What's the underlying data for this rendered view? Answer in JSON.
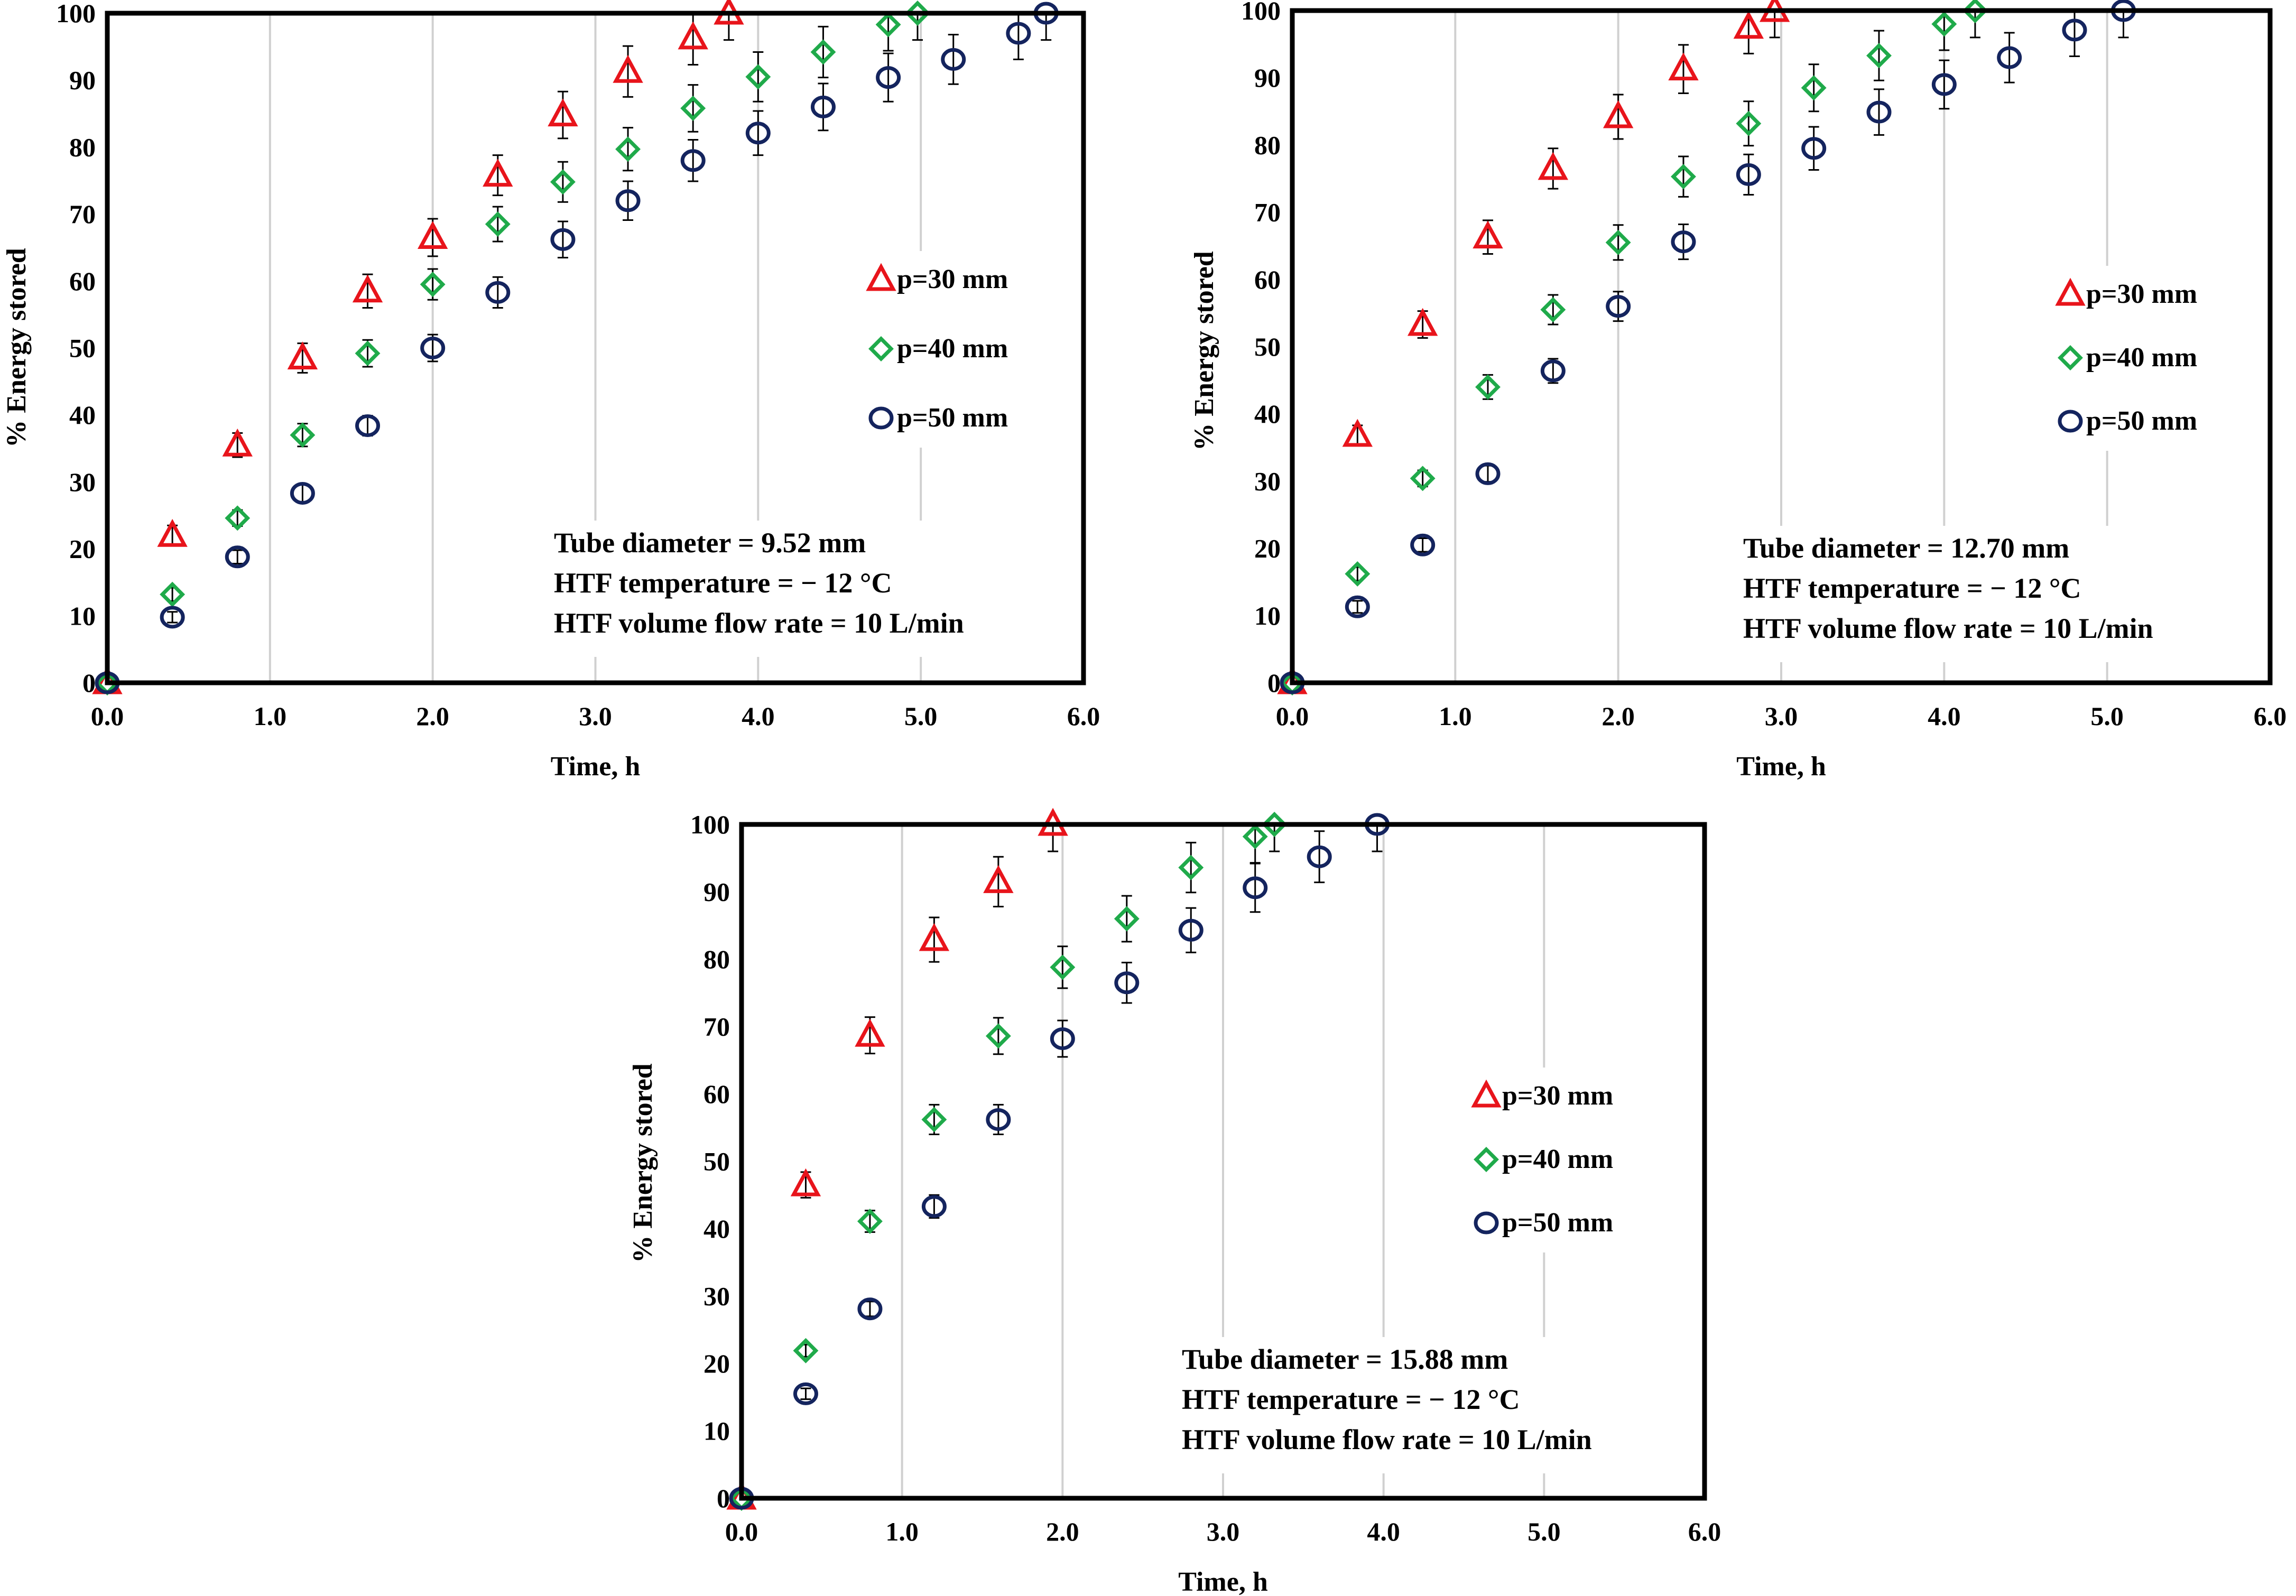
{
  "colors": {
    "p30": "#e8141b",
    "p40": "#1faa4a",
    "p50": "#14245e",
    "grid": "#d0d0d0",
    "frame": "#000000"
  },
  "chart_data": [
    {
      "type": "scatter",
      "title": "",
      "xlabel": "Time, h",
      "ylabel": "% Energy stored",
      "xlim": [
        0,
        6
      ],
      "ylim": [
        0,
        100
      ],
      "x_ticks": [
        "0.0",
        "1.0",
        "2.0",
        "3.0",
        "4.0",
        "5.0",
        "6.0"
      ],
      "y_ticks": [
        "0",
        "10",
        "20",
        "30",
        "40",
        "50",
        "60",
        "70",
        "80",
        "90",
        "100"
      ],
      "legend": [
        "p=30 mm",
        "p=40 mm",
        "p=50 mm"
      ],
      "annotation": [
        "Tube diameter = 9.52 mm",
        "HTF temperature = − 12 °C",
        "HTF volume flow rate = 10 L/min"
      ],
      "series": [
        {
          "name": "p=30 mm",
          "marker": "triangle",
          "x": [
            0,
            0.4,
            0.8,
            1.2,
            1.6,
            2.0,
            2.4,
            2.8,
            3.2,
            3.6,
            3.82
          ],
          "y": [
            0,
            22,
            35.5,
            48.5,
            58.5,
            66.5,
            75.8,
            84.8,
            91.3,
            96.3,
            100
          ],
          "err": [
            0,
            1.5,
            1.8,
            2.2,
            2.5,
            2.8,
            3.0,
            3.5,
            3.8,
            4.0,
            4.0
          ]
        },
        {
          "name": "p=40 mm",
          "marker": "diamond",
          "x": [
            0,
            0.4,
            0.8,
            1.2,
            1.6,
            2.0,
            2.4,
            2.8,
            3.2,
            3.6,
            4.0,
            4.4,
            4.8,
            4.98
          ],
          "y": [
            0,
            13.2,
            24.6,
            37,
            49.2,
            59.5,
            68.5,
            74.8,
            79.7,
            85.8,
            90.5,
            94.2,
            98.3,
            100
          ],
          "err": [
            0,
            1.0,
            1.2,
            1.7,
            2.0,
            2.3,
            2.6,
            3.0,
            3.2,
            3.5,
            3.7,
            3.8,
            3.9,
            4.0
          ]
        },
        {
          "name": "p=50 mm",
          "marker": "circle",
          "x": [
            0,
            0.4,
            0.8,
            1.2,
            1.6,
            2.0,
            2.4,
            2.8,
            3.2,
            3.6,
            4.0,
            4.4,
            4.8,
            5.2,
            5.6,
            5.77
          ],
          "y": [
            0,
            9.8,
            18.8,
            28.3,
            38.4,
            50,
            58.3,
            66.2,
            72,
            78,
            82.1,
            86,
            90.4,
            93.1,
            97,
            100
          ],
          "err": [
            0,
            0.8,
            1.0,
            1.3,
            1.5,
            2.0,
            2.3,
            2.7,
            2.9,
            3.1,
            3.3,
            3.5,
            3.6,
            3.7,
            3.9,
            4.0
          ]
        }
      ]
    },
    {
      "type": "scatter",
      "title": "",
      "xlabel": "Time, h",
      "ylabel": "% Energy stored",
      "xlim": [
        0,
        6
      ],
      "ylim": [
        0,
        100
      ],
      "x_ticks": [
        "0.0",
        "1.0",
        "2.0",
        "3.0",
        "4.0",
        "5.0",
        "6.0"
      ],
      "y_ticks": [
        "0",
        "10",
        "20",
        "30",
        "40",
        "50",
        "60",
        "70",
        "80",
        "90",
        "100"
      ],
      "legend": [
        "p=30 mm",
        "p=40 mm",
        "p=50 mm"
      ],
      "annotation": [
        "Tube diameter = 12.70 mm",
        "HTF temperature = − 12 °C",
        "HTF volume flow rate = 10 L/min"
      ],
      "series": [
        {
          "name": "p=30 mm",
          "marker": "triangle",
          "x": [
            0,
            0.4,
            0.8,
            1.2,
            1.6,
            2.0,
            2.4,
            2.8,
            2.96
          ],
          "y": [
            0,
            36.8,
            53.3,
            66.3,
            76.5,
            84.2,
            91.3,
            97.5,
            100
          ],
          "err": [
            0,
            1.5,
            2.0,
            2.5,
            3.0,
            3.3,
            3.6,
            3.9,
            4.0
          ]
        },
        {
          "name": "p=40 mm",
          "marker": "diamond",
          "x": [
            0,
            0.4,
            0.8,
            1.2,
            1.6,
            2.0,
            2.4,
            2.8,
            3.2,
            3.6,
            4.0,
            4.19
          ],
          "y": [
            0,
            16.2,
            30.4,
            44,
            55.5,
            65.5,
            75.3,
            83.2,
            88.5,
            93.3,
            98,
            100
          ],
          "err": [
            0,
            1.0,
            1.2,
            1.8,
            2.2,
            2.6,
            3.0,
            3.3,
            3.5,
            3.7,
            3.9,
            4.0
          ]
        },
        {
          "name": "p=50 mm",
          "marker": "circle",
          "x": [
            0,
            0.4,
            0.8,
            1.2,
            1.6,
            2.0,
            2.4,
            2.8,
            3.2,
            3.6,
            4.0,
            4.4,
            4.8,
            5.1
          ],
          "y": [
            0,
            11.3,
            20.5,
            31.1,
            46.4,
            56,
            65.6,
            75.6,
            79.5,
            84.9,
            89,
            93,
            97.1,
            100
          ],
          "err": [
            0,
            0.9,
            1.0,
            1.2,
            1.8,
            2.2,
            2.6,
            3.0,
            3.2,
            3.4,
            3.6,
            3.7,
            3.9,
            4.0
          ]
        }
      ]
    },
    {
      "type": "scatter",
      "title": "",
      "xlabel": "Time, h",
      "ylabel": "% Energy stored",
      "xlim": [
        0,
        6
      ],
      "ylim": [
        0,
        100
      ],
      "x_ticks": [
        "0.0",
        "1.0",
        "2.0",
        "3.0",
        "4.0",
        "5.0",
        "6.0"
      ],
      "y_ticks": [
        "0",
        "10",
        "20",
        "30",
        "40",
        "50",
        "60",
        "70",
        "80",
        "90",
        "100"
      ],
      "legend": [
        "p=30 mm",
        "p=40 mm",
        "p=50 mm"
      ],
      "annotation": [
        "Tube diameter = 15.88 mm",
        "HTF temperature = − 12 °C",
        "HTF volume flow rate = 10 L/min"
      ],
      "series": [
        {
          "name": "p=30 mm",
          "marker": "triangle",
          "x": [
            0,
            0.4,
            0.8,
            1.2,
            1.6,
            1.94
          ],
          "y": [
            0,
            46.5,
            68.7,
            82.9,
            91.5,
            100
          ],
          "err": [
            0,
            1.9,
            2.7,
            3.3,
            3.7,
            4.0
          ]
        },
        {
          "name": "p=40 mm",
          "marker": "diamond",
          "x": [
            0,
            0.4,
            0.8,
            1.2,
            1.6,
            2.0,
            2.4,
            2.8,
            3.2,
            3.32
          ],
          "y": [
            0,
            21.9,
            41.1,
            56.2,
            68.6,
            78.8,
            86,
            93.6,
            98.2,
            100
          ],
          "err": [
            0,
            0.9,
            1.6,
            2.2,
            2.7,
            3.1,
            3.4,
            3.7,
            3.9,
            4.0
          ]
        },
        {
          "name": "p=50 mm",
          "marker": "circle",
          "x": [
            0,
            0.4,
            0.8,
            1.2,
            1.6,
            2.0,
            2.4,
            2.8,
            3.2,
            3.6,
            3.96
          ],
          "y": [
            0,
            15.5,
            28.1,
            43.3,
            56.2,
            68.2,
            76.5,
            84.3,
            90.6,
            95.2,
            100
          ],
          "err": [
            0,
            0.8,
            1.1,
            1.7,
            2.2,
            2.7,
            3.0,
            3.3,
            3.6,
            3.8,
            4.0
          ]
        }
      ]
    }
  ]
}
